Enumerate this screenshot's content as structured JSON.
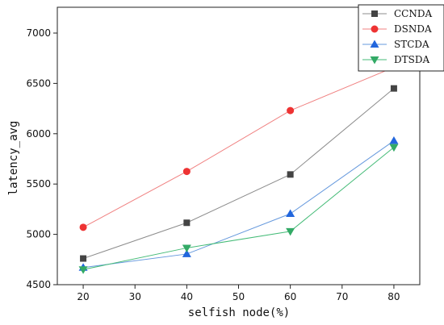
{
  "chart_data": {
    "type": "line",
    "x": [
      20,
      40,
      60,
      80
    ],
    "xlabel": "selfish node(%)",
    "ylabel": "latency_avg",
    "xlim": [
      15,
      85
    ],
    "ylim": [
      4500,
      7000
    ],
    "xticks": [
      20,
      30,
      40,
      50,
      60,
      70,
      80
    ],
    "yticks": [
      4500,
      5000,
      5500,
      6000,
      6500,
      7000
    ],
    "legend_position": "top-right",
    "grid": false,
    "series": [
      {
        "name": "CCNDA",
        "marker": "square",
        "line_color": "#8c8c8c",
        "marker_color": "#444444",
        "values": [
          4760,
          5115,
          5595,
          6450
        ]
      },
      {
        "name": "DSNDA",
        "marker": "circle",
        "line_color": "#f08080",
        "marker_color": "#ee3333",
        "values": [
          5070,
          5625,
          6230,
          6660
        ]
      },
      {
        "name": "STCDA",
        "marker": "triangle-up",
        "line_color": "#6699dd",
        "marker_color": "#2266dd",
        "values": [
          4670,
          4805,
          5205,
          5930
        ]
      },
      {
        "name": "DTSDA",
        "marker": "triangle-down",
        "line_color": "#44bb77",
        "marker_color": "#33aa66",
        "values": [
          4650,
          4865,
          5030,
          5865
        ]
      }
    ]
  }
}
